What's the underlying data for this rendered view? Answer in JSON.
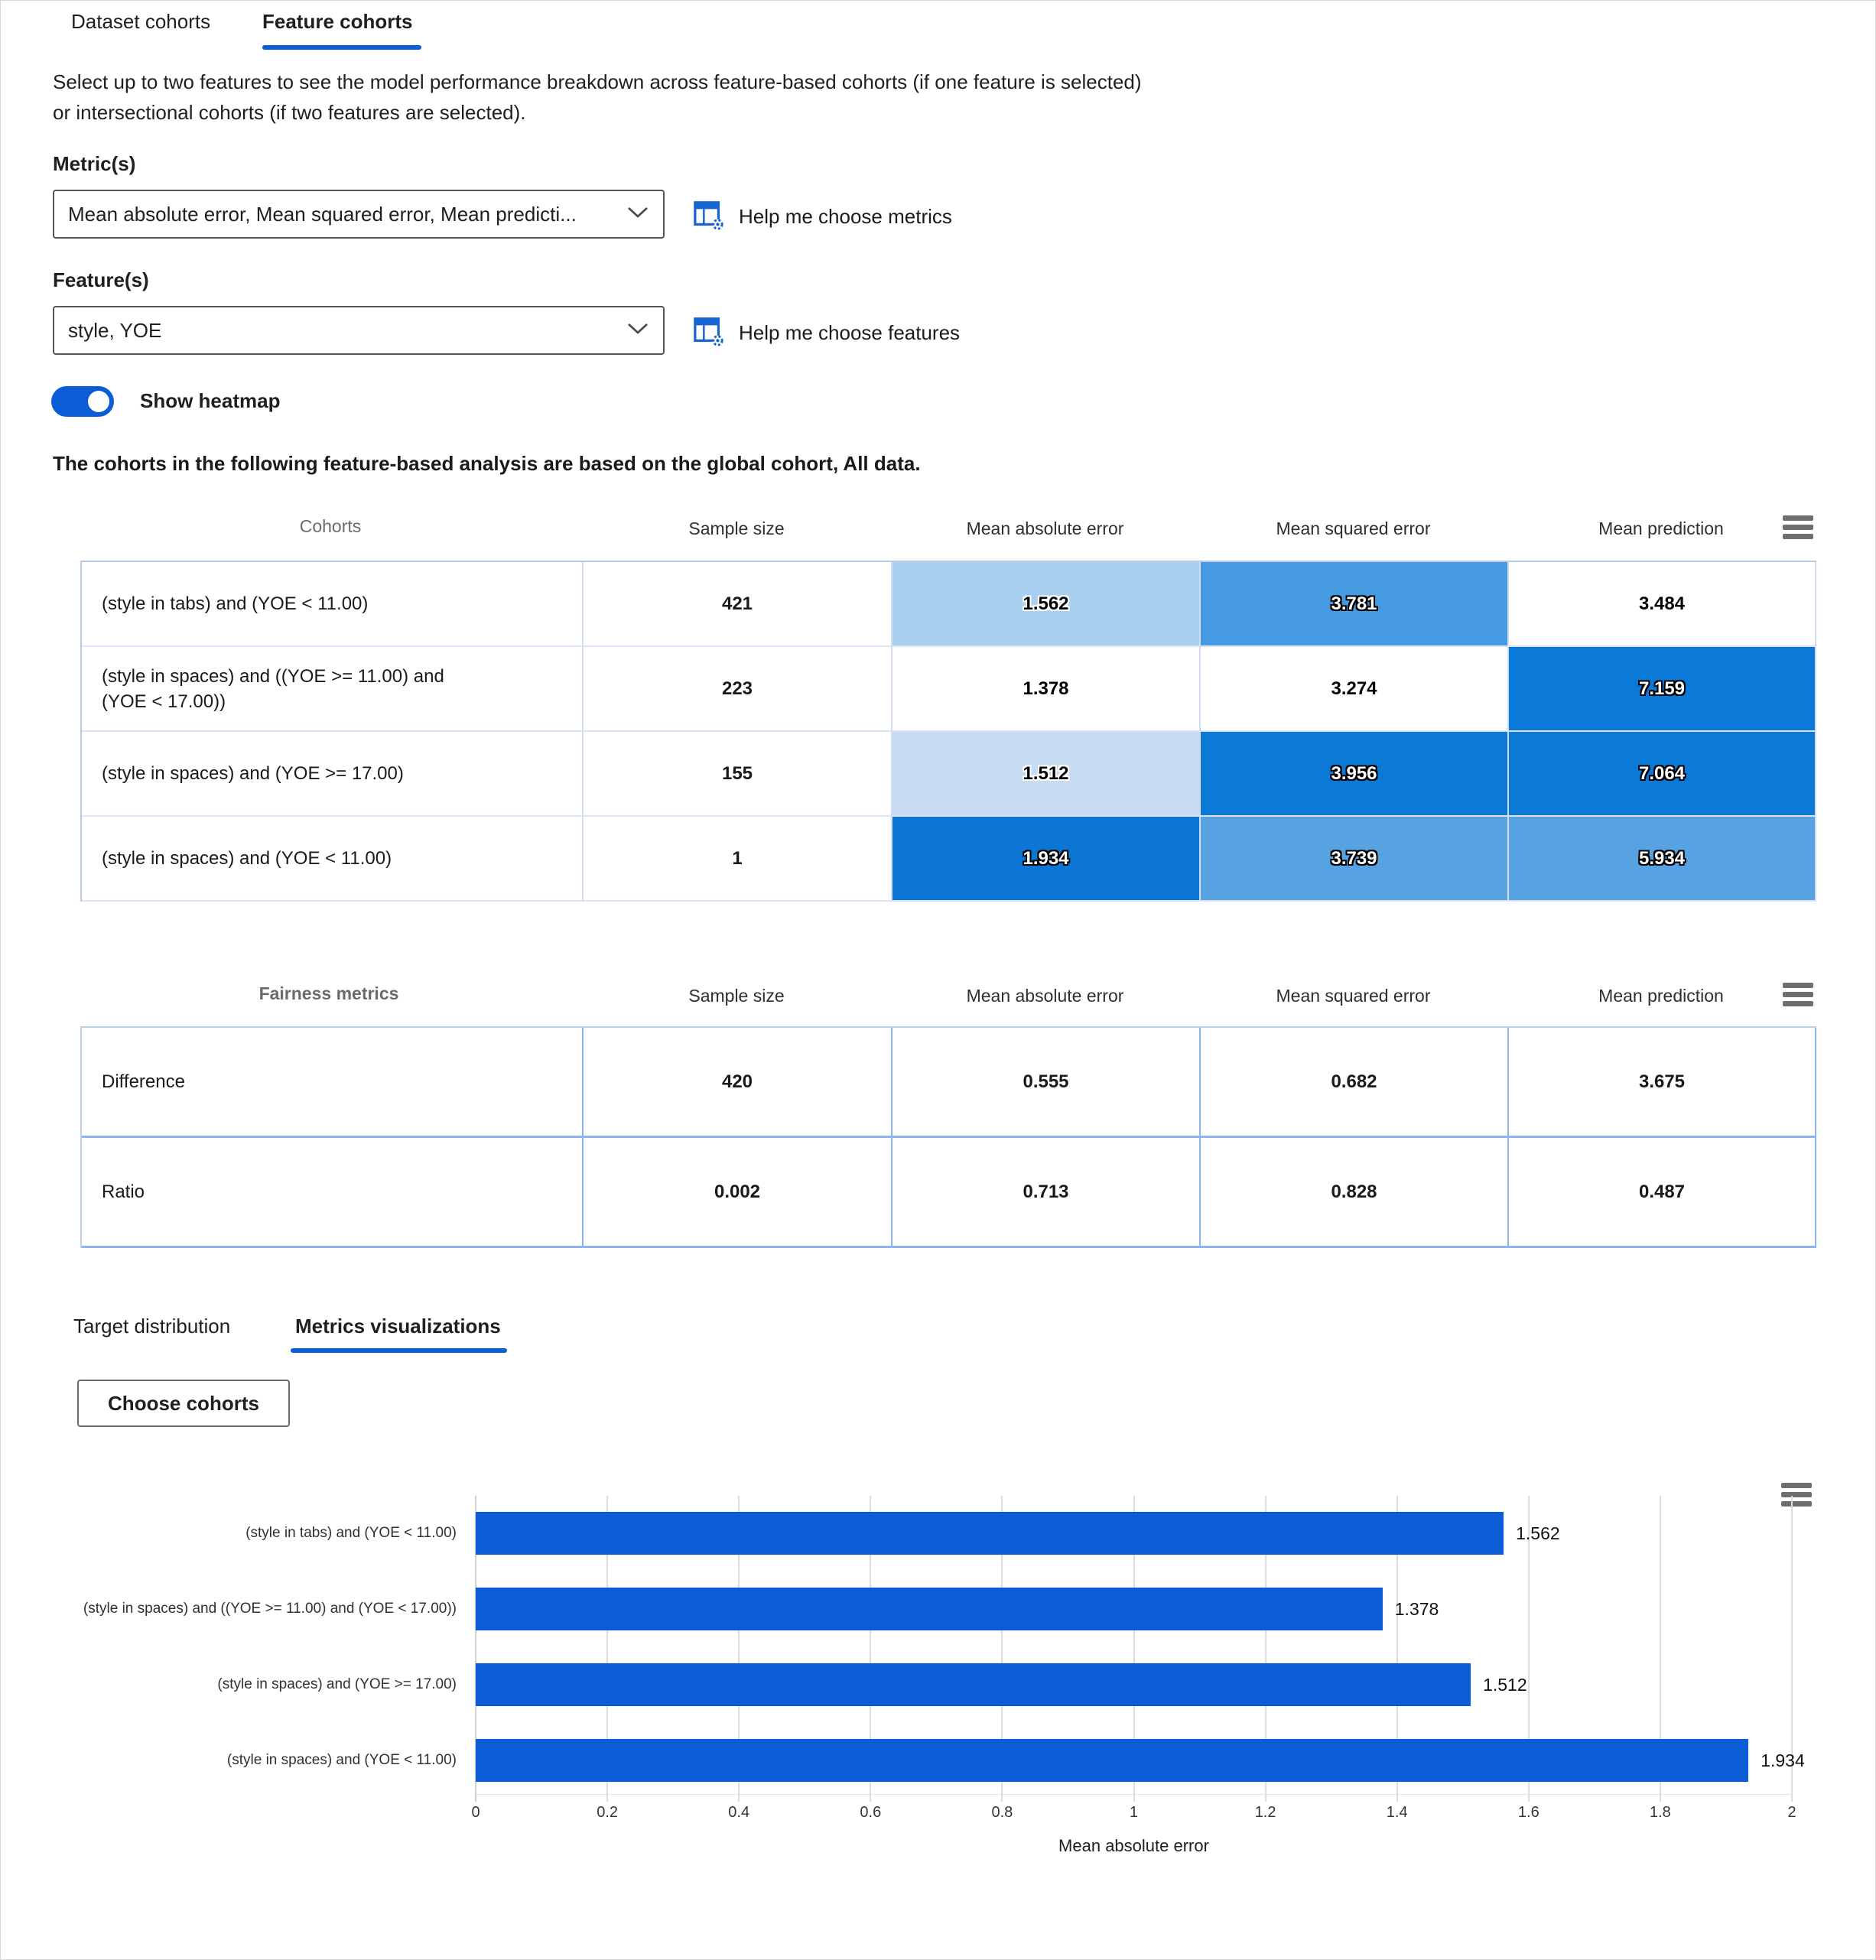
{
  "colors": {
    "accent": "#0b5cd7",
    "help_icon_blue": "#1663d2",
    "heat_light": "#a9d0f1",
    "heat_mid": "#459ae2",
    "heat_strong": "#0b79d8"
  },
  "top_tabs": {
    "dataset": "Dataset cohorts",
    "feature": "Feature cohorts"
  },
  "description": "Select up to two features to see the model performance breakdown across feature-based cohorts (if one feature is selected) or intersectional cohorts (if two features are selected).",
  "metrics_field": {
    "label": "Metric(s)",
    "value": "Mean absolute error, Mean squared error, Mean predicti...",
    "help": "Help me choose metrics"
  },
  "features_field": {
    "label": "Feature(s)",
    "value": "style, YOE",
    "help": "Help me choose features"
  },
  "heatmap_toggle": {
    "label": "Show heatmap",
    "state": "on"
  },
  "note": "The cohorts in the following feature-based analysis are based on the global cohort, All data.",
  "cohort_table": {
    "title": "Cohorts",
    "columns": [
      "Sample size",
      "Mean absolute error",
      "Mean squared error",
      "Mean prediction"
    ],
    "rows": [
      {
        "name": "(style in tabs) and (YOE < 11.00)",
        "sample": "421",
        "cells": [
          {
            "v": "1.562",
            "bg": "#a9d0f1",
            "tone": "light"
          },
          {
            "v": "3.781",
            "bg": "#459ae2",
            "tone": "dark"
          },
          {
            "v": "3.484",
            "bg": "#ffffff",
            "tone": "plain"
          }
        ]
      },
      {
        "name": "(style in spaces) and ((YOE >= 11.00) and (YOE < 17.00))",
        "sample": "223",
        "cells": [
          {
            "v": "1.378",
            "bg": "#ffffff",
            "tone": "plain"
          },
          {
            "v": "3.274",
            "bg": "#ffffff",
            "tone": "plain"
          },
          {
            "v": "7.159",
            "bg": "#0b79d8",
            "tone": "dark"
          }
        ]
      },
      {
        "name": "(style in spaces) and (YOE >= 17.00)",
        "sample": "155",
        "cells": [
          {
            "v": "1.512",
            "bg": "#c7dcf3",
            "tone": "light"
          },
          {
            "v": "3.956",
            "bg": "#0b7ad7",
            "tone": "dark"
          },
          {
            "v": "7.064",
            "bg": "#0b7ad7",
            "tone": "dark"
          }
        ]
      },
      {
        "name": "(style in spaces) and (YOE < 11.00)",
        "sample": "1",
        "cells": [
          {
            "v": "1.934",
            "bg": "#0b76d4",
            "tone": "dark"
          },
          {
            "v": "3.739",
            "bg": "#57a3e2",
            "tone": "dark"
          },
          {
            "v": "5.934",
            "bg": "#57a3e2",
            "tone": "dark"
          }
        ]
      }
    ]
  },
  "fairness_table": {
    "title": "Fairness metrics",
    "columns": [
      "Sample size",
      "Mean absolute error",
      "Mean squared error",
      "Mean prediction"
    ],
    "rows": [
      {
        "name": "Difference",
        "values": [
          "420",
          "0.555",
          "0.682",
          "3.675"
        ]
      },
      {
        "name": "Ratio",
        "values": [
          "0.002",
          "0.713",
          "0.828",
          "0.487"
        ]
      }
    ]
  },
  "sub_tabs": {
    "target": "Target distribution",
    "metrics": "Metrics visualizations"
  },
  "choose_cohorts_label": "Choose cohorts",
  "chart_data": {
    "type": "bar",
    "orientation": "horizontal",
    "title": "",
    "categories": [
      "(style in tabs) and (YOE < 11.00)",
      "(style in spaces) and ((YOE >= 11.00) and (YOE < 17.00))",
      "(style in spaces) and (YOE >= 17.00)",
      "(style in spaces) and (YOE < 11.00)"
    ],
    "values": [
      1.562,
      1.378,
      1.512,
      1.934
    ],
    "value_labels": [
      "1.562",
      "1.378",
      "1.512",
      "1.934"
    ],
    "xlabel": "Mean absolute error",
    "xlim": [
      0,
      2
    ],
    "xticks": [
      "0",
      "0.2",
      "0.4",
      "0.6",
      "0.8",
      "1",
      "1.2",
      "1.4",
      "1.6",
      "1.8",
      "2"
    ],
    "grid": true,
    "legend": false,
    "bar_color": "#0b5cd7"
  }
}
